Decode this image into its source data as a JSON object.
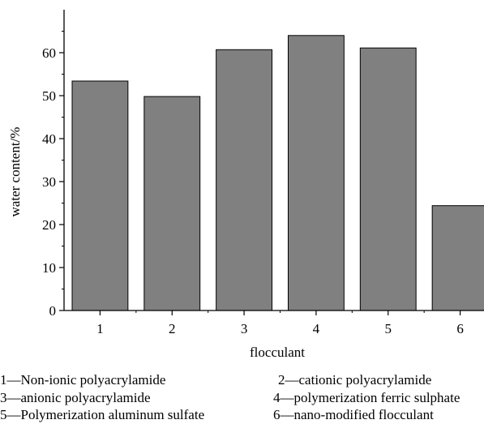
{
  "chart_data": {
    "type": "bar",
    "categories": [
      "1",
      "2",
      "3",
      "4",
      "5",
      "6"
    ],
    "values": [
      53.4,
      49.8,
      60.7,
      64.0,
      61.1,
      24.4
    ],
    "xlabel": "flocculant",
    "ylabel": "water content/%",
    "ylim": [
      0,
      70
    ],
    "yticks": [
      0,
      10,
      20,
      30,
      40,
      50,
      60
    ],
    "bar_color": "#808080",
    "grid": false
  },
  "legend": [
    "1—Non-ionic polyacrylamide",
    "2—cationic polyacrylamide",
    "3—anionic polyacrylamide",
    "4—polymerization ferric sulphate",
    "5—Polymerization aluminum sulfate",
    "6—nano-modified flocculant"
  ]
}
